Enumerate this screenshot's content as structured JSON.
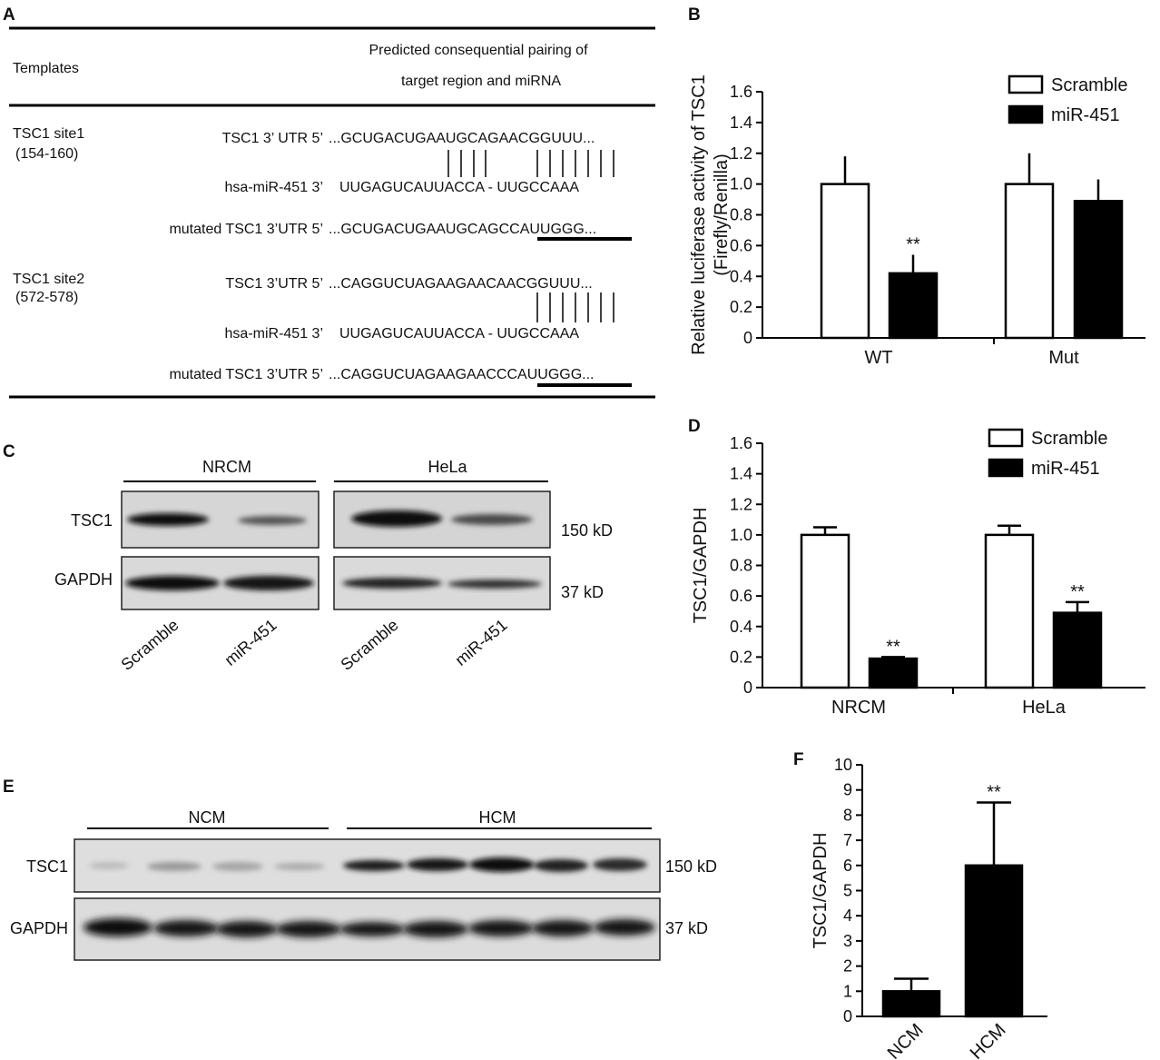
{
  "panel_labels": {
    "a": "A",
    "b": "B",
    "c": "C",
    "d": "D",
    "e": "E",
    "f": "F"
  },
  "panel_a": {
    "col_templates": "Templates",
    "col_pairing_1": "Predicted consequential pairing of",
    "col_pairing_2": "target region and miRNA",
    "site1_name": "TSC1 site1",
    "site1_range": "(154-160)",
    "site2_name": "TSC1 site2",
    "site2_range": "(572-578)",
    "rows": [
      {
        "label": "TSC1 3’ UTR 5’",
        "seq": "...GCUGACUGAAUGCAGAACGGUUU..."
      },
      {
        "label": "hsa-miR-451 3’",
        "seq": "UUGAGUCAUUACCA - UUGCCAAA"
      },
      {
        "label": "mutated TSC1 3’UTR 5’",
        "seq": "...GCUGACUGAAUGCAGCCAUUGGG..."
      },
      {
        "label": "TSC1 3’UTR 5’",
        "seq": "...CAGGUCUAGAAGAACAACGGUUU..."
      },
      {
        "label": "hsa-miR-451 3’",
        "seq": "UUGAGUCAUUACCA - UUGCCAAA"
      },
      {
        "label": "mutated TSC1 3’UTR 5’",
        "seq": "...CAGGUCUAGAAGAACCCAUUGGG..."
      }
    ]
  },
  "panel_c": {
    "group1": "NRCM",
    "group2": "HeLa",
    "row1": "TSC1",
    "row2": "GAPDH",
    "kd1": "150 kD",
    "kd2": "37 kD",
    "lanes": [
      "Scramble",
      "miR-451",
      "Scramble",
      "miR-451"
    ]
  },
  "panel_e": {
    "group1": "NCM",
    "group2": "HCM",
    "row1": "TSC1",
    "row2": "GAPDH",
    "kd1": "150 kD",
    "kd2": "37 kD"
  },
  "chart_data": [
    {
      "panel": "B",
      "type": "bar",
      "ylabel_line1": "Relative luciferase activity of TSC1",
      "ylabel_line2": "(Firefly/Renilla)",
      "categories": [
        "WT",
        "Mut"
      ],
      "ylim": [
        0,
        1.6
      ],
      "yticks": [
        "0",
        "0.2",
        "0.4",
        "0.6",
        "0.8",
        "1.0",
        "1.2",
        "1.4",
        "1.6"
      ],
      "series": [
        {
          "name": "Scramble",
          "color": "#ffffff",
          "values": [
            1.0,
            1.0
          ],
          "errors": [
            0.18,
            0.2
          ]
        },
        {
          "name": "miR-451",
          "color": "#000000",
          "values": [
            0.42,
            0.89
          ],
          "errors": [
            0.12,
            0.14
          ]
        }
      ],
      "annotations": [
        {
          "category": "WT",
          "series": "miR-451",
          "text": "**"
        }
      ],
      "legend": "top-right"
    },
    {
      "panel": "D",
      "type": "bar",
      "ylabel": "TSC1/GAPDH",
      "categories": [
        "NRCM",
        "HeLa"
      ],
      "ylim": [
        0,
        1.6
      ],
      "yticks": [
        "0",
        "0.2",
        "0.4",
        "0.6",
        "0.8",
        "1.0",
        "1.2",
        "1.4",
        "1.6"
      ],
      "series": [
        {
          "name": "Scramble",
          "color": "#ffffff",
          "values": [
            1.0,
            1.0
          ],
          "errors": [
            0.05,
            0.06
          ]
        },
        {
          "name": "miR-451",
          "color": "#000000",
          "values": [
            0.19,
            0.49
          ],
          "errors": [
            0.01,
            0.07
          ]
        }
      ],
      "annotations": [
        {
          "category": "NRCM",
          "series": "miR-451",
          "text": "**"
        },
        {
          "category": "HeLa",
          "series": "miR-451",
          "text": "**"
        }
      ],
      "legend": "top-right"
    },
    {
      "panel": "F",
      "type": "bar",
      "ylabel": "TSC1/GAPDH",
      "categories": [
        "NCM",
        "HCM"
      ],
      "ylim": [
        0,
        10
      ],
      "yticks": [
        "0",
        "1",
        "2",
        "3",
        "4",
        "5",
        "6",
        "7",
        "8",
        "9",
        "10"
      ],
      "series": [
        {
          "color": "#000000",
          "values": [
            1.0,
            6.0
          ],
          "errors": [
            0.5,
            2.5
          ]
        }
      ],
      "annotations": [
        {
          "category": "HCM",
          "text": "**"
        }
      ]
    }
  ]
}
